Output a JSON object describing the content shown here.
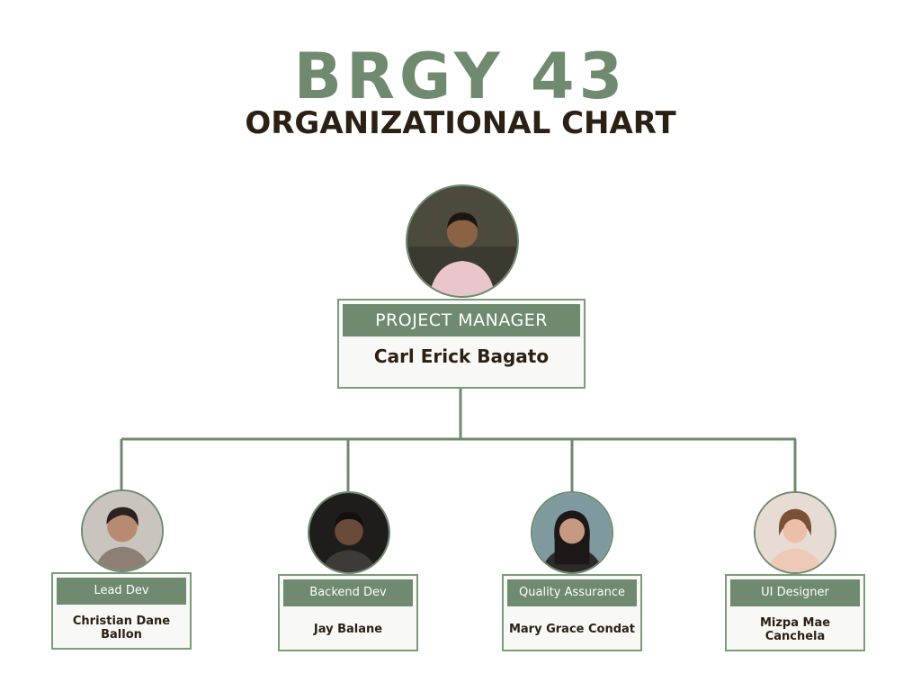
{
  "title": "BRGY 43",
  "subtitle": "ORGANIZATIONAL CHART",
  "colors": {
    "accent": "#6f8a6e",
    "title_green": "#6f8a6e",
    "subtitle_dark": "#2b2014",
    "name_dark": "#2b2014",
    "card_border": "#7e9a7c",
    "card_bg": "#f8f8f6"
  },
  "manager": {
    "role": "PROJECT MANAGER",
    "name": "Carl Erick Bagato",
    "photo": "person-photo"
  },
  "members": [
    {
      "role": "Lead Dev",
      "name": "Christian Dane Ballon",
      "photo": "person-photo"
    },
    {
      "role": "Backend Dev",
      "name": "Jay Balane",
      "photo": "person-photo"
    },
    {
      "role": "Quality Assurance",
      "name": "Mary Grace Condat",
      "photo": "person-photo"
    },
    {
      "role": "UI Designer",
      "name": "Mizpa Mae Canchela",
      "photo": "person-photo"
    }
  ]
}
